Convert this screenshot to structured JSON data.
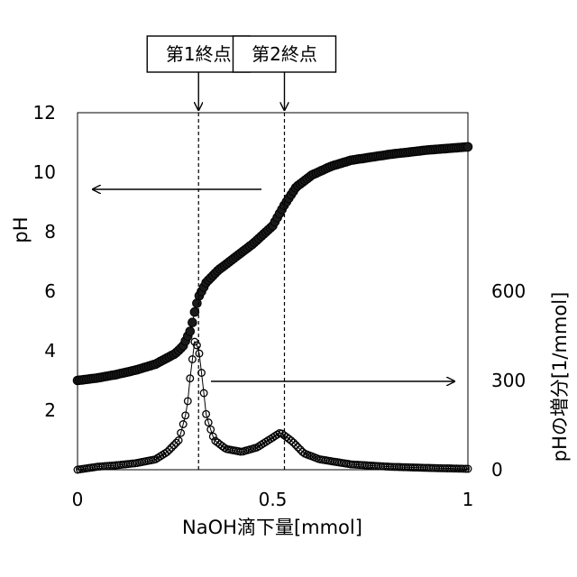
{
  "chart_data": {
    "type": "scatter",
    "title": "",
    "xlabel": "NaOH滴下量[mmol]",
    "ylabel_left": "pH",
    "ylabel_right": "pHの増分[1/mmol]",
    "xlim": [
      0,
      1
    ],
    "ylim_left": [
      0,
      12
    ],
    "ylim_right": [
      0,
      1200
    ],
    "x_ticks": [
      {
        "v": 0,
        "label": "0"
      },
      {
        "v": 0.5,
        "label": "0.5"
      },
      {
        "v": 1,
        "label": "1"
      }
    ],
    "y_left_ticks": [
      {
        "v": 2,
        "label": "2"
      },
      {
        "v": 4,
        "label": "4"
      },
      {
        "v": 6,
        "label": "6"
      },
      {
        "v": 8,
        "label": "8"
      },
      {
        "v": 10,
        "label": "10"
      },
      {
        "v": 12,
        "label": "12"
      }
    ],
    "y_right_ticks": [
      {
        "v": 0,
        "label": "0"
      },
      {
        "v": 300,
        "label": "300"
      },
      {
        "v": 600,
        "label": "600"
      }
    ],
    "grid": false,
    "series": [
      {
        "axis": "left",
        "marker": "filled-circle",
        "points": [
          [
            0,
            3.0
          ],
          [
            0.05,
            3.08
          ],
          [
            0.1,
            3.2
          ],
          [
            0.15,
            3.35
          ],
          [
            0.2,
            3.55
          ],
          [
            0.25,
            3.9
          ],
          [
            0.27,
            4.15
          ],
          [
            0.29,
            4.7
          ],
          [
            0.3,
            5.3
          ],
          [
            0.31,
            5.8
          ],
          [
            0.33,
            6.3
          ],
          [
            0.36,
            6.7
          ],
          [
            0.4,
            7.1
          ],
          [
            0.45,
            7.6
          ],
          [
            0.5,
            8.2
          ],
          [
            0.53,
            8.9
          ],
          [
            0.56,
            9.5
          ],
          [
            0.6,
            9.9
          ],
          [
            0.65,
            10.2
          ],
          [
            0.7,
            10.4
          ],
          [
            0.8,
            10.6
          ],
          [
            0.9,
            10.75
          ],
          [
            1.0,
            10.85
          ]
        ]
      },
      {
        "axis": "right",
        "marker": "open-circle",
        "points": [
          [
            0,
            0
          ],
          [
            0.05,
            10
          ],
          [
            0.1,
            15
          ],
          [
            0.15,
            22
          ],
          [
            0.2,
            35
          ],
          [
            0.23,
            60
          ],
          [
            0.26,
            100
          ],
          [
            0.28,
            200
          ],
          [
            0.29,
            330
          ],
          [
            0.3,
            430
          ],
          [
            0.31,
            410
          ],
          [
            0.32,
            300
          ],
          [
            0.33,
            180
          ],
          [
            0.35,
            100
          ],
          [
            0.38,
            70
          ],
          [
            0.42,
            60
          ],
          [
            0.46,
            75
          ],
          [
            0.49,
            100
          ],
          [
            0.52,
            125
          ],
          [
            0.55,
            95
          ],
          [
            0.58,
            55
          ],
          [
            0.62,
            35
          ],
          [
            0.7,
            18
          ],
          [
            0.8,
            10
          ],
          [
            0.9,
            6
          ],
          [
            1.0,
            3
          ]
        ]
      }
    ],
    "annotations": {
      "callouts": [
        {
          "label": "第1終点",
          "x": 0.31
        },
        {
          "label": "第2終点",
          "x": 0.53
        }
      ],
      "arrows": [
        {
          "direction": "left",
          "axis": "left"
        },
        {
          "direction": "right",
          "axis": "right"
        }
      ]
    }
  }
}
